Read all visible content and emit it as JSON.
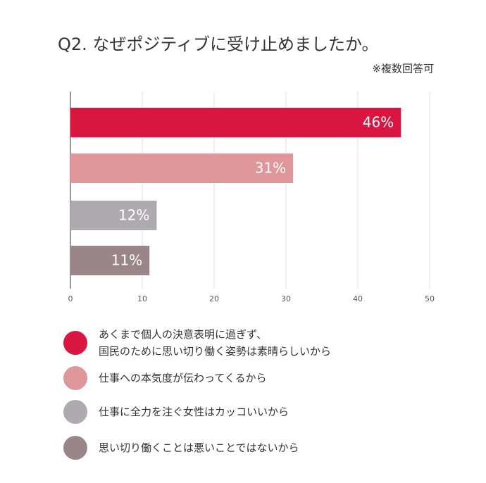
{
  "chart_data": {
    "type": "barh",
    "title": "Q2. なぜポジティブに受け止めましたか。",
    "subtitle": "※複数回答可",
    "categories": [
      "あくまで個人の決意表明に過ぎず、\n国民のために思い切り働く姿勢は素晴らしいから",
      "仕事への本気度が伝わってくるから",
      "仕事に全力を注ぐ女性はカッコいいから",
      "思い切り働くことは悪いことではないから"
    ],
    "values": [
      46,
      31,
      12,
      11
    ],
    "value_labels": [
      "46%",
      "31%",
      "12%",
      "11%"
    ],
    "colors": [
      "#d9163f",
      "#e0979c",
      "#aeaab0",
      "#9a8589"
    ],
    "xlim": [
      0,
      50
    ],
    "xticks": [
      0,
      10,
      20,
      30,
      40,
      50
    ],
    "grid": true
  }
}
